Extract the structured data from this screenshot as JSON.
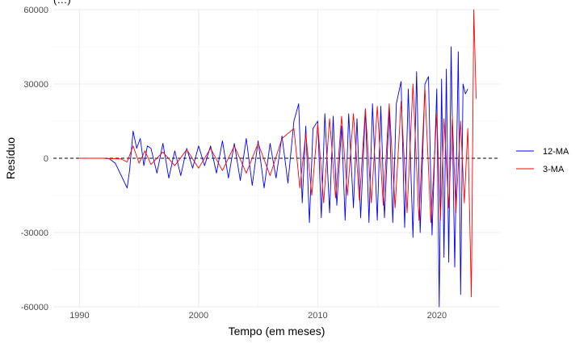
{
  "chart_data": {
    "type": "line",
    "title": "(…)",
    "xlabel": "Tempo (em meses)",
    "ylabel": "Resíduo",
    "xlim": [
      1987.8,
      2025.3
    ],
    "ylim": [
      -60000,
      60000
    ],
    "x_ticks": [
      1990,
      2000,
      2010,
      2020
    ],
    "x_tick_labels": [
      "1990",
      "2000",
      "2010",
      "2020"
    ],
    "y_ticks": [
      -60000,
      -30000,
      0,
      30000,
      60000
    ],
    "y_tick_labels": [
      "-60000",
      "-30000",
      "0",
      "30000",
      "60000"
    ],
    "grid": true,
    "legend_position": "right",
    "reference_line": {
      "y": 0,
      "style": "dashed",
      "color": "#000000"
    },
    "series": [
      {
        "name": "12-MA",
        "color": "#0000ff",
        "x": [
          1990.0,
          1991.0,
          1992.0,
          1992.5,
          1993.0,
          1993.5,
          1994.0,
          1994.2,
          1994.5,
          1994.8,
          1995.1,
          1995.4,
          1995.7,
          1996.0,
          1996.5,
          1997.0,
          1997.5,
          1998.0,
          1998.5,
          1999.0,
          1999.5,
          2000.0,
          2000.5,
          2001.0,
          2001.5,
          2002.0,
          2002.5,
          2003.0,
          2003.5,
          2004.0,
          2004.5,
          2005.0,
          2005.5,
          2006.0,
          2006.5,
          2007.0,
          2007.5,
          2008.0,
          2008.4,
          2008.7,
          2009.0,
          2009.3,
          2009.6,
          2010.0,
          2010.3,
          2010.6,
          2011.0,
          2011.3,
          2011.6,
          2012.0,
          2012.3,
          2012.6,
          2013.0,
          2013.3,
          2013.6,
          2014.0,
          2014.3,
          2014.6,
          2015.0,
          2015.3,
          2015.6,
          2016.0,
          2016.3,
          2016.6,
          2017.0,
          2017.3,
          2017.6,
          2018.0,
          2018.3,
          2018.6,
          2019.0,
          2019.3,
          2019.6,
          2020.0,
          2020.2,
          2020.4,
          2020.6,
          2020.8,
          2021.0,
          2021.2,
          2021.5,
          2021.8,
          2022.0,
          2022.2,
          2022.4,
          2022.6
        ],
        "values": [
          0,
          0,
          0,
          -200,
          -2000,
          -7000,
          -12000,
          -5000,
          11000,
          4000,
          8000,
          -3000,
          5000,
          4000,
          -6000,
          6000,
          -8000,
          3000,
          -7000,
          4000,
          -4000,
          5000,
          -3000,
          5000,
          -6000,
          7000,
          -8000,
          6000,
          -9000,
          8000,
          -11000,
          7000,
          -12000,
          6000,
          -8000,
          9000,
          -10000,
          15000,
          22000,
          -18000,
          13000,
          -26000,
          12000,
          15000,
          -24000,
          18000,
          -22000,
          17000,
          -19000,
          13000,
          -25000,
          18000,
          -20000,
          16000,
          -24000,
          20000,
          -26000,
          22000,
          -25000,
          21000,
          -24000,
          20000,
          -26000,
          22000,
          31000,
          -28000,
          28000,
          -32000,
          35000,
          -30000,
          30000,
          33000,
          -31000,
          28000,
          -60000,
          32000,
          -40000,
          36000,
          -42000,
          45000,
          -44000,
          43000,
          -55000,
          30000,
          26000,
          28000
        ]
      },
      {
        "name": "3-MA",
        "color": "#ff0000",
        "x": [
          1990.0,
          1992.0,
          1993.5,
          1994.0,
          1994.5,
          1995.0,
          1995.5,
          1996.0,
          1997.0,
          1998.0,
          1999.0,
          2000.0,
          2001.0,
          2002.0,
          2003.0,
          2004.0,
          2005.0,
          2006.0,
          2007.0,
          2008.0,
          2008.5,
          2009.0,
          2009.5,
          2010.0,
          2010.5,
          2011.0,
          2011.5,
          2012.0,
          2012.5,
          2013.0,
          2013.5,
          2014.0,
          2014.5,
          2015.0,
          2015.5,
          2016.0,
          2016.5,
          2017.0,
          2017.5,
          2018.0,
          2018.5,
          2019.0,
          2019.5,
          2020.0,
          2020.3,
          2020.6,
          2021.0,
          2021.3,
          2021.6,
          2022.0,
          2022.3,
          2022.6,
          2022.9,
          2023.1,
          2023.3
        ],
        "values": [
          0,
          0,
          -300,
          -1500,
          5000,
          -2000,
          3000,
          -2500,
          2500,
          -3000,
          3500,
          -4000,
          4000,
          -5000,
          5000,
          -6000,
          6000,
          -7000,
          8000,
          12000,
          -12000,
          10000,
          -15000,
          14000,
          -18000,
          16000,
          -16000,
          17000,
          -15000,
          18000,
          -17000,
          20000,
          -18000,
          21000,
          -19000,
          22000,
          -20000,
          23000,
          -22000,
          30000,
          -25000,
          28000,
          -26000,
          18000,
          -25000,
          16000,
          -20000,
          17000,
          -22000,
          15000,
          -18000,
          12000,
          -56000,
          60000,
          24000
        ]
      }
    ]
  }
}
